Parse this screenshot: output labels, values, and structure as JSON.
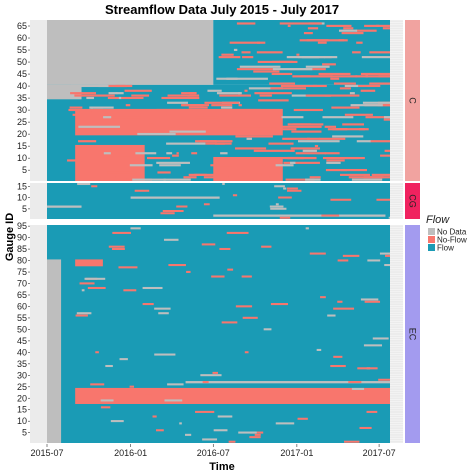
{
  "chart_data": {
    "type": "heatmap",
    "title": "Streamflow Data July 2015 - July 2017",
    "xlabel": "Time",
    "ylabel": "Gauge ID",
    "x_range": [
      "2015-07-01",
      "2017-07-25"
    ],
    "x_ticks": [
      "2015-07",
      "2016-01",
      "2016-07",
      "2017-01",
      "2017-07"
    ],
    "legend": {
      "title": "Flow",
      "placement": "right",
      "entries": [
        {
          "label": "No Data",
          "color": "#bebebe"
        },
        {
          "label": "No-Flow",
          "color": "#f8766d"
        },
        {
          "label": "Flow",
          "color": "#1a9bb5"
        }
      ]
    },
    "panels": [
      {
        "name": "C",
        "strip_color": "#f1a3a0",
        "gauges": 67,
        "y_ticks": [
          5,
          10,
          15,
          20,
          25,
          30,
          35,
          40,
          45,
          50,
          55,
          60,
          65
        ],
        "summary": "Gauges 41-67 have no data until 2016-07, then mostly flow with intermittent no-flow; gauges 1-40 mix no-flow and flow throughout, no data for several gauges until 2015-09",
        "segments": [
          {
            "from": 41,
            "to": 67,
            "start": "2015-07-01",
            "end": "2016-07-01",
            "state": "No Data"
          },
          {
            "from": 41,
            "to": 67,
            "start": "2016-07-01",
            "end": "2017-07-25",
            "state": "Flow"
          },
          {
            "from": 1,
            "to": 40,
            "start": "2015-07-01",
            "end": "2017-07-25",
            "state": "Flow"
          },
          {
            "from": 35,
            "to": 40,
            "start": "2015-07-01",
            "end": "2015-09-15",
            "state": "No Data"
          },
          {
            "from": 20,
            "to": 30,
            "start": "2015-09-01",
            "end": "2016-12-01",
            "state": "No-Flow"
          },
          {
            "from": 1,
            "to": 15,
            "start": "2015-09-01",
            "end": "2016-02-01",
            "state": "No-Flow"
          },
          {
            "from": 1,
            "to": 10,
            "start": "2016-07-01",
            "end": "2016-12-01",
            "state": "No-Flow"
          }
        ]
      },
      {
        "name": "CG",
        "strip_color": "#f0225f",
        "gauges": 16,
        "y_ticks": [
          5,
          10,
          15
        ],
        "summary": "Mostly flow; a few gauges with no data for short stretches",
        "segments": [
          {
            "from": 1,
            "to": 16,
            "start": "2015-07-01",
            "end": "2017-07-25",
            "state": "Flow"
          },
          {
            "from": 2,
            "to": 2,
            "start": "2016-07-01",
            "end": "2017-07-15",
            "state": "No Data"
          },
          {
            "from": 6,
            "to": 6,
            "start": "2015-07-01",
            "end": "2015-09-15",
            "state": "No Data"
          },
          {
            "from": 10,
            "to": 10,
            "start": "2016-01-01",
            "end": "2016-07-15",
            "state": "No Data"
          }
        ]
      },
      {
        "name": "EC",
        "strip_color": "#a39bef",
        "gauges": 95,
        "y_ticks": [
          5,
          10,
          15,
          20,
          25,
          30,
          35,
          40,
          45,
          50,
          55,
          60,
          65,
          70,
          75,
          80,
          85,
          90,
          95
        ],
        "summary": "Mostly flow; no data for many gauges during 2015-07 to 2015-08; gauges 18-24 show extensive no-flow; gauge 27 has no data from 2016-05 onward",
        "segments": [
          {
            "from": 1,
            "to": 95,
            "start": "2015-07-01",
            "end": "2017-07-25",
            "state": "Flow"
          },
          {
            "from": 1,
            "to": 80,
            "start": "2015-07-01",
            "end": "2015-08-01",
            "state": "No Data"
          },
          {
            "from": 18,
            "to": 24,
            "start": "2015-09-01",
            "end": "2017-07-25",
            "state": "No-Flow"
          },
          {
            "from": 27,
            "to": 27,
            "start": "2016-05-01",
            "end": "2017-07-25",
            "state": "No Data"
          },
          {
            "from": 78,
            "to": 80,
            "start": "2015-09-01",
            "end": "2015-11-01",
            "state": "No-Flow"
          }
        ]
      }
    ]
  }
}
